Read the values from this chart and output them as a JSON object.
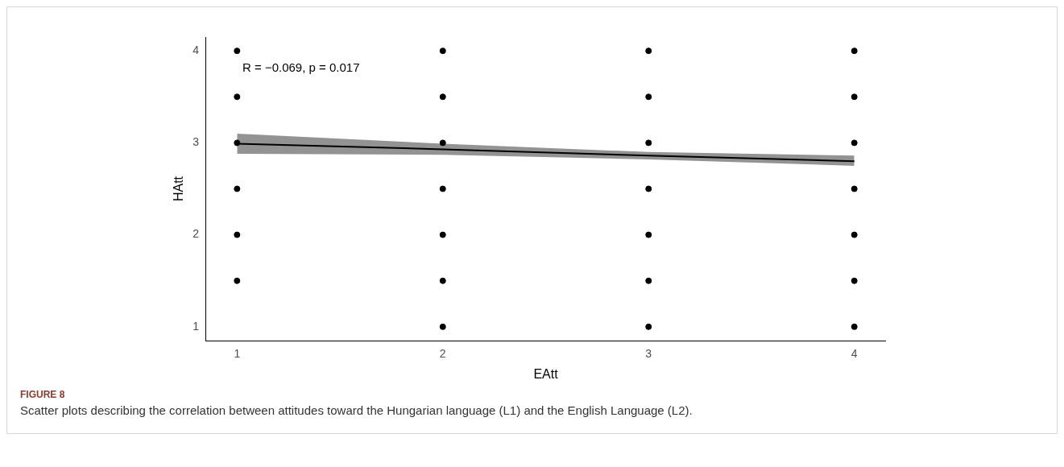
{
  "chart_data": {
    "type": "scatter",
    "xlabel": "EAtt",
    "ylabel": "HAtt",
    "xlim": [
      0.85,
      4.15
    ],
    "ylim": [
      0.85,
      4.15
    ],
    "xticks": [
      1,
      2,
      3,
      4
    ],
    "yticks": [
      1,
      2,
      3,
      4
    ],
    "grid": false,
    "legend": false,
    "series": [
      {
        "type": "scatter",
        "marker": "circle",
        "color": "#000000",
        "x": [
          1,
          1,
          1,
          1,
          1,
          1,
          2,
          2,
          2,
          2,
          2,
          2,
          2,
          3,
          3,
          3,
          3,
          3,
          3,
          3,
          4,
          4,
          4,
          4,
          4,
          4,
          4
        ],
        "values": [
          4,
          3.5,
          3,
          2.5,
          2,
          1.5,
          4,
          3.5,
          3,
          2.5,
          2,
          1.5,
          1,
          4,
          3.5,
          3,
          2.5,
          2,
          1.5,
          1,
          4,
          3.5,
          3,
          2.5,
          2,
          1.5,
          1
        ]
      },
      {
        "type": "line",
        "color": "#000000",
        "x": [
          1,
          2,
          3,
          4
        ],
        "values": [
          2.99,
          2.93,
          2.86,
          2.8
        ],
        "lower": [
          2.88,
          2.87,
          2.82,
          2.75
        ],
        "upper": [
          3.1,
          2.99,
          2.9,
          2.86
        ]
      }
    ],
    "annotations": [
      "R = −0.069, p = 0.017",
      "FIGURE 8",
      "Scatter plots describing the correlation between attitudes toward the Hungarian language (L1) and the English Language (L2)."
    ]
  }
}
